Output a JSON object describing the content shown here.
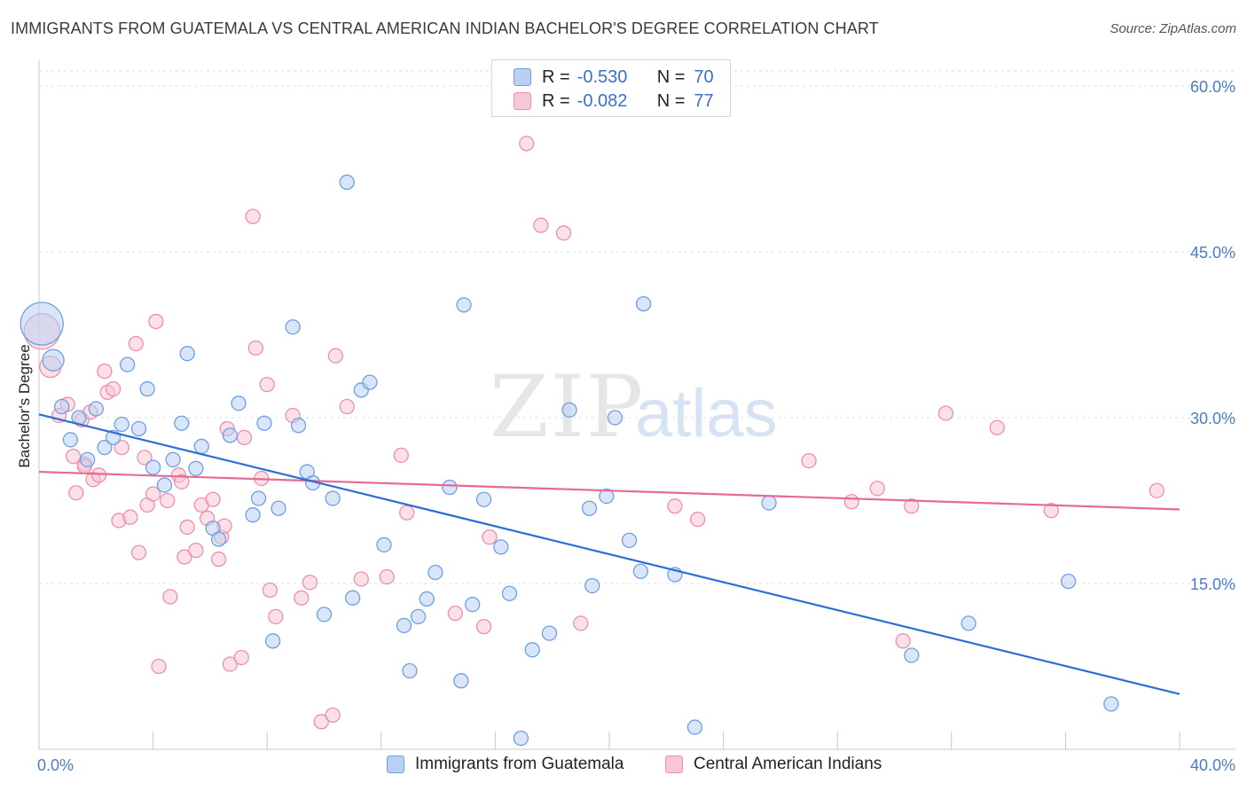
{
  "header": {
    "title": "IMMIGRANTS FROM GUATEMALA VS CENTRAL AMERICAN INDIAN BACHELOR'S DEGREE CORRELATION CHART",
    "source": "Source: ZipAtlas.com"
  },
  "watermark": {
    "zip": "ZIP",
    "atlas": "atlas"
  },
  "legend": {
    "rows": [
      {
        "r_label": "R =",
        "r_value": "-0.530",
        "n_label": "N =",
        "n_value": "70"
      },
      {
        "r_label": "R =",
        "r_value": "-0.082",
        "n_label": "N =",
        "n_value": "77"
      }
    ]
  },
  "colors": {
    "blue_fill": "#b9d0f2",
    "blue_stroke": "#6f9fe0",
    "blue_line": "#2a6fd6",
    "pink_fill": "#f8c6d5",
    "pink_stroke": "#eb8fae",
    "pink_line": "#e56a95",
    "tick_text": "#4a7cc9",
    "grid": "#dcdcdc"
  },
  "chart_data": {
    "type": "scatter",
    "xlabel": "",
    "ylabel": "Bachelor's Degree",
    "xlim": [
      0,
      40
    ],
    "ylim": [
      0,
      60
    ],
    "x_tick_labels": [
      "0.0%",
      "40.0%"
    ],
    "y_tick_labels": [
      "15.0%",
      "30.0%",
      "45.0%",
      "60.0%"
    ],
    "y_ticks": [
      15,
      30,
      45,
      60
    ],
    "grid": "horizontal dashed",
    "legend_position": "top-center",
    "series": [
      {
        "name": "Immigrants from Guatemala",
        "color": "#6f9fe0",
        "trend": {
          "x": [
            0,
            40
          ],
          "y": [
            30.3,
            5.0
          ]
        },
        "points": [
          {
            "x": 0.1,
            "y": 38.5,
            "s": 3
          },
          {
            "x": 0.5,
            "y": 35.2,
            "s": 1.5
          },
          {
            "x": 0.8,
            "y": 31.0
          },
          {
            "x": 1.1,
            "y": 28.0
          },
          {
            "x": 1.4,
            "y": 30.0
          },
          {
            "x": 1.7,
            "y": 26.2
          },
          {
            "x": 2.0,
            "y": 30.8
          },
          {
            "x": 2.3,
            "y": 27.3
          },
          {
            "x": 2.6,
            "y": 28.2
          },
          {
            "x": 2.9,
            "y": 29.4
          },
          {
            "x": 3.1,
            "y": 34.8
          },
          {
            "x": 3.5,
            "y": 29.0
          },
          {
            "x": 3.8,
            "y": 32.6
          },
          {
            "x": 4.0,
            "y": 25.5
          },
          {
            "x": 4.4,
            "y": 23.9
          },
          {
            "x": 4.7,
            "y": 26.2
          },
          {
            "x": 5.0,
            "y": 29.5
          },
          {
            "x": 5.2,
            "y": 35.8
          },
          {
            "x": 5.5,
            "y": 25.4
          },
          {
            "x": 5.7,
            "y": 27.4
          },
          {
            "x": 6.1,
            "y": 20.0
          },
          {
            "x": 6.3,
            "y": 19.0
          },
          {
            "x": 6.7,
            "y": 28.4
          },
          {
            "x": 7.0,
            "y": 31.3
          },
          {
            "x": 7.5,
            "y": 21.2
          },
          {
            "x": 7.7,
            "y": 22.7
          },
          {
            "x": 7.9,
            "y": 29.5
          },
          {
            "x": 8.2,
            "y": 9.8
          },
          {
            "x": 8.4,
            "y": 21.8
          },
          {
            "x": 8.9,
            "y": 38.2
          },
          {
            "x": 9.1,
            "y": 29.3
          },
          {
            "x": 9.4,
            "y": 25.1
          },
          {
            "x": 9.6,
            "y": 24.1
          },
          {
            "x": 10.0,
            "y": 12.2
          },
          {
            "x": 10.3,
            "y": 22.7
          },
          {
            "x": 10.8,
            "y": 51.3
          },
          {
            "x": 11.0,
            "y": 13.7
          },
          {
            "x": 11.3,
            "y": 32.5
          },
          {
            "x": 11.6,
            "y": 33.2
          },
          {
            "x": 12.1,
            "y": 18.5
          },
          {
            "x": 12.8,
            "y": 11.2
          },
          {
            "x": 13.0,
            "y": 7.1
          },
          {
            "x": 13.3,
            "y": 12.0
          },
          {
            "x": 13.6,
            "y": 13.6
          },
          {
            "x": 13.9,
            "y": 16.0
          },
          {
            "x": 14.4,
            "y": 23.7
          },
          {
            "x": 14.8,
            "y": 6.2
          },
          {
            "x": 14.9,
            "y": 40.2
          },
          {
            "x": 15.2,
            "y": 13.1
          },
          {
            "x": 15.6,
            "y": 22.6
          },
          {
            "x": 16.2,
            "y": 18.3
          },
          {
            "x": 16.5,
            "y": 14.1
          },
          {
            "x": 16.9,
            "y": 1.0
          },
          {
            "x": 17.3,
            "y": 9.0
          },
          {
            "x": 17.9,
            "y": 10.5
          },
          {
            "x": 18.6,
            "y": 30.7
          },
          {
            "x": 19.3,
            "y": 21.8
          },
          {
            "x": 19.4,
            "y": 14.8
          },
          {
            "x": 19.9,
            "y": 22.9
          },
          {
            "x": 20.2,
            "y": 30.0
          },
          {
            "x": 20.7,
            "y": 18.9
          },
          {
            "x": 21.1,
            "y": 16.1
          },
          {
            "x": 21.2,
            "y": 40.3
          },
          {
            "x": 22.3,
            "y": 15.8
          },
          {
            "x": 23.0,
            "y": 2.0
          },
          {
            "x": 25.6,
            "y": 22.3
          },
          {
            "x": 30.6,
            "y": 8.5
          },
          {
            "x": 32.6,
            "y": 11.4
          },
          {
            "x": 36.1,
            "y": 15.2
          },
          {
            "x": 37.6,
            "y": 4.1
          }
        ]
      },
      {
        "name": "Central American Indians",
        "color": "#eb8fae",
        "trend": {
          "x": [
            0,
            40
          ],
          "y": [
            25.1,
            21.7
          ]
        },
        "points": [
          {
            "x": 0.1,
            "y": 37.8,
            "s": 2.5
          },
          {
            "x": 0.4,
            "y": 34.6,
            "s": 1.5
          },
          {
            "x": 0.7,
            "y": 30.2
          },
          {
            "x": 1.0,
            "y": 31.2
          },
          {
            "x": 1.2,
            "y": 26.5
          },
          {
            "x": 1.3,
            "y": 23.2
          },
          {
            "x": 1.5,
            "y": 29.8
          },
          {
            "x": 1.6,
            "y": 25.8
          },
          {
            "x": 1.8,
            "y": 30.5
          },
          {
            "x": 1.9,
            "y": 24.4
          },
          {
            "x": 2.1,
            "y": 24.8
          },
          {
            "x": 2.3,
            "y": 34.2
          },
          {
            "x": 2.4,
            "y": 32.3
          },
          {
            "x": 2.6,
            "y": 32.6
          },
          {
            "x": 2.8,
            "y": 20.7
          },
          {
            "x": 2.9,
            "y": 27.3
          },
          {
            "x": 3.2,
            "y": 21.0
          },
          {
            "x": 3.4,
            "y": 36.7
          },
          {
            "x": 3.5,
            "y": 17.8
          },
          {
            "x": 3.7,
            "y": 26.4
          },
          {
            "x": 3.8,
            "y": 22.1
          },
          {
            "x": 4.0,
            "y": 23.1
          },
          {
            "x": 4.1,
            "y": 38.7
          },
          {
            "x": 4.2,
            "y": 7.5
          },
          {
            "x": 4.5,
            "y": 22.5
          },
          {
            "x": 4.6,
            "y": 13.8
          },
          {
            "x": 4.9,
            "y": 24.8
          },
          {
            "x": 5.0,
            "y": 24.2
          },
          {
            "x": 5.1,
            "y": 17.4
          },
          {
            "x": 5.2,
            "y": 20.1
          },
          {
            "x": 5.5,
            "y": 18.0
          },
          {
            "x": 5.7,
            "y": 22.1
          },
          {
            "x": 5.9,
            "y": 20.9
          },
          {
            "x": 6.1,
            "y": 22.6
          },
          {
            "x": 6.3,
            "y": 17.2
          },
          {
            "x": 6.4,
            "y": 19.2
          },
          {
            "x": 6.6,
            "y": 29.0
          },
          {
            "x": 6.7,
            "y": 7.7
          },
          {
            "x": 7.1,
            "y": 8.3
          },
          {
            "x": 7.2,
            "y": 28.2
          },
          {
            "x": 7.5,
            "y": 48.2
          },
          {
            "x": 7.6,
            "y": 36.3
          },
          {
            "x": 7.8,
            "y": 24.5
          },
          {
            "x": 8.0,
            "y": 33.0
          },
          {
            "x": 8.1,
            "y": 14.4
          },
          {
            "x": 8.3,
            "y": 12.0
          },
          {
            "x": 8.9,
            "y": 30.2
          },
          {
            "x": 9.2,
            "y": 13.7
          },
          {
            "x": 9.5,
            "y": 15.1
          },
          {
            "x": 9.9,
            "y": 2.5
          },
          {
            "x": 10.3,
            "y": 3.1
          },
          {
            "x": 10.4,
            "y": 35.6
          },
          {
            "x": 10.8,
            "y": 31.0
          },
          {
            "x": 11.3,
            "y": 15.4
          },
          {
            "x": 12.2,
            "y": 15.6
          },
          {
            "x": 12.7,
            "y": 26.6
          },
          {
            "x": 12.9,
            "y": 21.4
          },
          {
            "x": 14.6,
            "y": 12.3
          },
          {
            "x": 15.6,
            "y": 11.1
          },
          {
            "x": 15.8,
            "y": 19.2
          },
          {
            "x": 17.1,
            "y": 54.8
          },
          {
            "x": 17.6,
            "y": 47.4
          },
          {
            "x": 18.4,
            "y": 46.7
          },
          {
            "x": 19.0,
            "y": 11.4
          },
          {
            "x": 22.3,
            "y": 22.0
          },
          {
            "x": 23.1,
            "y": 20.8
          },
          {
            "x": 27.0,
            "y": 26.1
          },
          {
            "x": 28.5,
            "y": 22.4
          },
          {
            "x": 29.4,
            "y": 23.6
          },
          {
            "x": 30.3,
            "y": 9.8
          },
          {
            "x": 30.6,
            "y": 22.0
          },
          {
            "x": 31.8,
            "y": 30.4
          },
          {
            "x": 33.6,
            "y": 29.1
          },
          {
            "x": 35.5,
            "y": 21.6
          },
          {
            "x": 39.2,
            "y": 23.4
          },
          {
            "x": 6.5,
            "y": 20.2
          },
          {
            "x": 1.6,
            "y": 25.6
          }
        ]
      }
    ]
  }
}
